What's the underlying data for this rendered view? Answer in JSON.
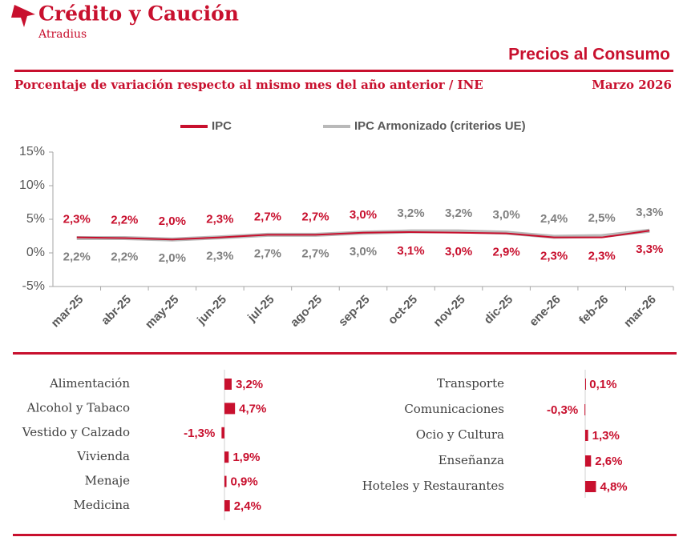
{
  "header": {
    "brand": "Crédito y Caución",
    "sub_brand": "Atradius",
    "title": "Precios al Consumo",
    "subtitle": "Porcentaje de variación respecto al mismo mes del año anterior / INE",
    "date": "Marzo 2026"
  },
  "chart_data": [
    {
      "type": "line",
      "categories": [
        "mar-25",
        "abr-25",
        "may-25",
        "jun-25",
        "jul-25",
        "ago-25",
        "sep-25",
        "oct-25",
        "nov-25",
        "dic-25",
        "ene-26",
        "feb-26",
        "mar-26"
      ],
      "series": [
        {
          "name": "IPC Armonizado (criterios UE)",
          "color": "#b9b9b9",
          "label_color": "#808080",
          "values": [
            2.2,
            2.2,
            2.0,
            2.3,
            2.7,
            2.7,
            3.0,
            3.2,
            3.2,
            3.0,
            2.4,
            2.5,
            3.3
          ],
          "value_labels": [
            "2,2%",
            "2,2%",
            "2,0%",
            "2,3%",
            "2,7%",
            "2,7%",
            "3,0%",
            "3,2%",
            "3,2%",
            "3,0%",
            "2,4%",
            "2,5%",
            "3,3%"
          ]
        },
        {
          "name": "IPC",
          "color": "#c8102e",
          "label_color": "#c8102e",
          "values": [
            2.3,
            2.2,
            2.0,
            2.3,
            2.7,
            2.7,
            3.0,
            3.1,
            3.0,
            2.9,
            2.3,
            2.3,
            3.3
          ],
          "value_labels": [
            "2,3%",
            "2,2%",
            "2,0%",
            "2,3%",
            "2,7%",
            "2,7%",
            "3,0%",
            "3,1%",
            "3,0%",
            "2,9%",
            "2,3%",
            "2,3%",
            "3,3%"
          ]
        }
      ],
      "ylim": [
        -5,
        15
      ],
      "yticks": [
        {
          "value": -5,
          "label": "-5%"
        },
        {
          "value": 0,
          "label": "0%"
        },
        {
          "value": 5,
          "label": "5%"
        },
        {
          "value": 10,
          "label": "10%"
        },
        {
          "value": 15,
          "label": "15%"
        }
      ],
      "legend": "top"
    },
    {
      "type": "bar",
      "orientation": "horizontal",
      "color": "#c8102e",
      "categories": [
        "Alimentación",
        "Alcohol y Tabaco",
        "Vestido y Calzado",
        "Vivienda",
        "Menaje",
        "Medicina"
      ],
      "values": [
        3.2,
        4.7,
        -1.3,
        1.9,
        0.9,
        2.4
      ],
      "value_labels": [
        "3,2%",
        "4,7%",
        "-1,3%",
        "1,9%",
        "0,9%",
        "2,4%"
      ]
    },
    {
      "type": "bar",
      "orientation": "horizontal",
      "color": "#c8102e",
      "categories": [
        "Transporte",
        "Comunicaciones",
        "Ocio y Cultura",
        "Enseñanza",
        "Hoteles y Restaurantes"
      ],
      "values": [
        0.1,
        -0.3,
        1.3,
        2.6,
        4.8
      ],
      "value_labels": [
        "0,1%",
        "-0,3%",
        "1,3%",
        "2,6%",
        "4,8%"
      ]
    }
  ]
}
